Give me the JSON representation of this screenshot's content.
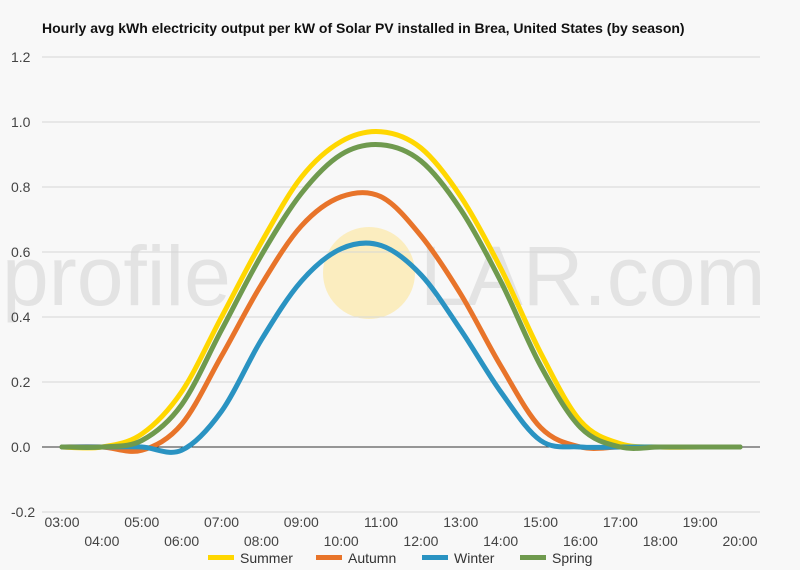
{
  "chart_data": {
    "type": "line",
    "title": "Hourly avg kWh electricity output per kW of Solar PV installed in Brea, United States (by season)",
    "watermark": {
      "left": "profile",
      "right": "LAR.com"
    },
    "xlabel": "",
    "ylabel": "",
    "x": [
      "03:00",
      "04:00",
      "05:00",
      "06:00",
      "07:00",
      "08:00",
      "09:00",
      "10:00",
      "11:00",
      "12:00",
      "13:00",
      "14:00",
      "15:00",
      "16:00",
      "17:00",
      "18:00",
      "19:00",
      "20:00"
    ],
    "ylim": [
      -0.2,
      1.2
    ],
    "yticks": [
      "-0.2",
      "0.0",
      "0.2",
      "0.4",
      "0.6",
      "0.8",
      "1.0",
      "1.2"
    ],
    "grid": true,
    "legend_position": "bottom",
    "series": [
      {
        "name": "Summer",
        "color": "#ffd700",
        "values": [
          0,
          0,
          0.04,
          0.17,
          0.4,
          0.63,
          0.83,
          0.94,
          0.97,
          0.92,
          0.77,
          0.55,
          0.29,
          0.08,
          0.01,
          0,
          0,
          0
        ]
      },
      {
        "name": "Autumn",
        "color": "#e8742a",
        "values": [
          0,
          0,
          -0.01,
          0.07,
          0.28,
          0.5,
          0.68,
          0.77,
          0.77,
          0.65,
          0.47,
          0.25,
          0.06,
          0,
          0,
          0,
          0,
          0
        ]
      },
      {
        "name": "Winter",
        "color": "#2a93c2",
        "values": [
          0,
          0,
          0,
          -0.01,
          0.11,
          0.33,
          0.51,
          0.61,
          0.62,
          0.53,
          0.36,
          0.17,
          0.02,
          0,
          0,
          0,
          0,
          0
        ]
      },
      {
        "name": "Spring",
        "color": "#6f9a4e",
        "values": [
          0,
          0,
          0.02,
          0.13,
          0.36,
          0.59,
          0.78,
          0.9,
          0.93,
          0.88,
          0.73,
          0.51,
          0.25,
          0.06,
          0,
          0,
          0,
          0
        ]
      }
    ]
  }
}
